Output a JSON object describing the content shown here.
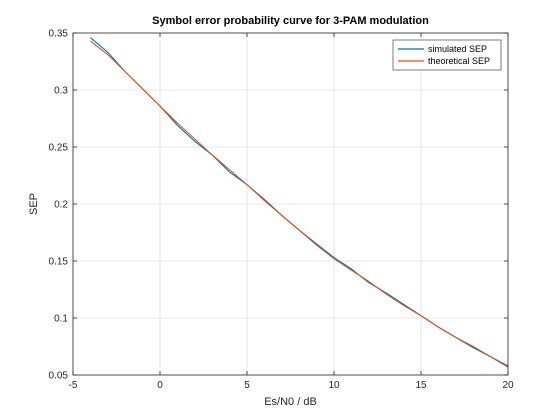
{
  "chart_data": {
    "type": "line",
    "title": "Symbol error probability curve for 3-PAM modulation",
    "xlabel": "Es/N0 / dB",
    "ylabel": "SEP",
    "xlim": [
      -5,
      20
    ],
    "ylim": [
      0.05,
      0.35
    ],
    "xticks": [
      -5,
      0,
      5,
      10,
      15,
      20
    ],
    "xtick_labels": [
      "-5",
      "0",
      "5",
      "10",
      "15",
      "20"
    ],
    "yticks": [
      0.05,
      0.1,
      0.15,
      0.2,
      0.25,
      0.3,
      0.35
    ],
    "ytick_labels": [
      "0.05",
      "0.1",
      "0.15",
      "0.2",
      "0.25",
      "0.3",
      "0.35"
    ],
    "grid": true,
    "legend_position": "top-right",
    "series": [
      {
        "name": "simulated SEP",
        "color": "#0072bd",
        "x": [
          -4,
          -3,
          -2,
          -1,
          0,
          1,
          2,
          3,
          4,
          5,
          6,
          7,
          8,
          9,
          10,
          11,
          12,
          13,
          14,
          15,
          16,
          17,
          18,
          19,
          20
        ],
        "y": [
          0.346,
          0.333,
          0.316,
          0.301,
          0.286,
          0.269,
          0.255,
          0.243,
          0.228,
          0.217,
          0.204,
          0.19,
          0.177,
          0.165,
          0.153,
          0.143,
          0.131,
          0.122,
          0.112,
          0.102,
          0.092,
          0.083,
          0.074,
          0.066,
          0.057
        ]
      },
      {
        "name": "theoretical SEP",
        "color": "#d95319",
        "x": [
          -4,
          -3,
          -2,
          -1,
          0,
          1,
          2,
          3,
          4,
          5,
          6,
          7,
          8,
          9,
          10,
          11,
          12,
          13,
          14,
          15,
          16,
          17,
          18,
          19,
          20
        ],
        "y": [
          0.343,
          0.331,
          0.316,
          0.301,
          0.286,
          0.271,
          0.257,
          0.243,
          0.23,
          0.217,
          0.203,
          0.19,
          0.177,
          0.164,
          0.152,
          0.142,
          0.132,
          0.121,
          0.111,
          0.102,
          0.092,
          0.083,
          0.075,
          0.066,
          0.058
        ]
      }
    ]
  }
}
